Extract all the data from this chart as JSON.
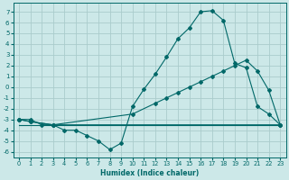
{
  "xlabel": "Humidex (Indice chaleur)",
  "bg_color": "#cce8e8",
  "grid_color": "#aacccc",
  "line_color": "#006868",
  "xlim": [
    -0.5,
    23.5
  ],
  "ylim": [
    -6.5,
    7.8
  ],
  "xticks": [
    0,
    1,
    2,
    3,
    4,
    5,
    6,
    7,
    8,
    9,
    10,
    11,
    12,
    13,
    14,
    15,
    16,
    17,
    18,
    19,
    20,
    21,
    22,
    23
  ],
  "yticks": [
    -6,
    -5,
    -4,
    -3,
    -2,
    -1,
    0,
    1,
    2,
    3,
    4,
    5,
    6,
    7
  ],
  "line1_x": [
    0,
    1,
    2,
    3,
    4,
    5,
    6,
    7,
    8,
    9,
    10,
    11,
    12,
    13,
    14,
    15,
    16,
    17,
    18,
    19,
    20,
    21,
    22,
    23
  ],
  "line1_y": [
    -3.0,
    -3.0,
    -3.5,
    -3.5,
    -4.0,
    -4.0,
    -4.5,
    -5.0,
    -5.8,
    -5.2,
    -1.8,
    -0.2,
    1.2,
    2.8,
    4.5,
    5.5,
    7.0,
    7.1,
    6.2,
    2.2,
    1.8,
    -1.8,
    -2.5,
    -3.5
  ],
  "line2_x": [
    0,
    1,
    3,
    10,
    12,
    13,
    14,
    15,
    16,
    17,
    18,
    19,
    20,
    21,
    22,
    23
  ],
  "line2_y": [
    -3.0,
    -3.2,
    -3.5,
    -2.5,
    -1.5,
    -1.0,
    -0.5,
    0.0,
    0.5,
    1.0,
    1.5,
    2.0,
    2.5,
    1.5,
    -0.3,
    -3.5
  ],
  "line3_x": [
    0,
    1,
    3,
    23
  ],
  "line3_y": [
    -3.0,
    -3.2,
    -3.5,
    -3.5
  ],
  "line4_x": [
    0,
    1,
    2,
    3,
    4,
    5,
    6,
    7,
    8,
    9,
    10,
    11,
    12,
    13,
    14,
    15,
    16,
    17,
    18,
    19,
    20,
    21,
    22,
    23
  ],
  "line4_y": [
    -3.5,
    -3.5,
    -3.5,
    -3.5,
    -3.5,
    -3.5,
    -3.5,
    -3.5,
    -3.5,
    -3.5,
    -3.5,
    -3.5,
    -3.5,
    -3.5,
    -3.5,
    -3.5,
    -3.5,
    -3.5,
    -3.5,
    -3.5,
    -3.5,
    -3.5,
    -3.5,
    -3.5
  ]
}
